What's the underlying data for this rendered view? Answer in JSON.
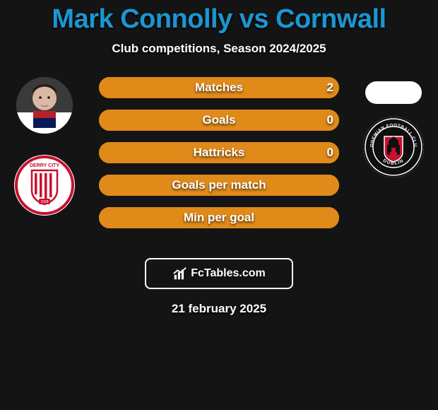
{
  "title": "Mark Connolly vs Cornwall",
  "subtitle": "Club competitions, Season 2024/2025",
  "date": "21 february 2025",
  "attribution": "FcTables.com",
  "colors": {
    "title": "#1b96d1",
    "bar_border": "#e08a1a",
    "bar_left_fill": "#259fd6",
    "bar_right_fill": "#e08a1a",
    "background": "#141414",
    "text": "#ffffff"
  },
  "left_player": {
    "has_photo": true,
    "club": "Derry City"
  },
  "right_player": {
    "has_photo": false,
    "club": "Bohemian FC Dublin"
  },
  "stats": [
    {
      "label": "Matches",
      "left_value": "",
      "right_value": "2",
      "left_pct": 0,
      "right_pct": 100
    },
    {
      "label": "Goals",
      "left_value": "",
      "right_value": "0",
      "left_pct": 0,
      "right_pct": 100
    },
    {
      "label": "Hattricks",
      "left_value": "",
      "right_value": "0",
      "left_pct": 0,
      "right_pct": 100
    },
    {
      "label": "Goals per match",
      "left_value": "",
      "right_value": "",
      "left_pct": 0,
      "right_pct": 100
    },
    {
      "label": "Min per goal",
      "left_value": "",
      "right_value": "",
      "left_pct": 0,
      "right_pct": 100
    }
  ]
}
